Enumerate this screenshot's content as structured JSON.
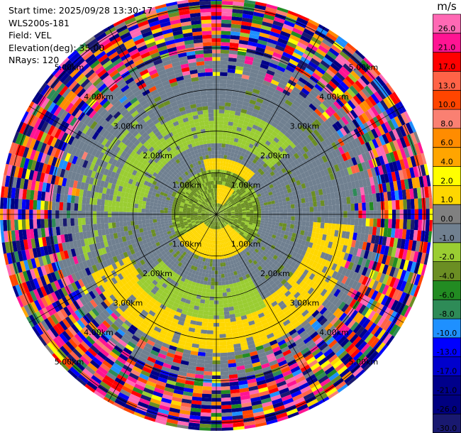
{
  "header": {
    "start_time": "Start time: 2025/09/28 13:30:17",
    "instrument": "WLS200s-181",
    "field": "Field: VEL",
    "elevation": "Elevation(deg): 35.00",
    "nrays": "NRays: 120"
  },
  "chart_data": {
    "type": "heatmap",
    "subtype": "ppi-polar",
    "field": "VEL",
    "units": "m/s",
    "n_rays": 120,
    "range_rings_km": [
      1.0,
      2.0,
      3.0,
      4.0,
      5.0
    ],
    "max_range_km": 5.2,
    "ring_labels": [
      "1.00km",
      "2.00km",
      "3.00km",
      "4.00km",
      "5.00km"
    ],
    "colorbar": {
      "title": "m/s",
      "tick_labels": [
        "26.0",
        "21.0",
        "17.0",
        "13.0",
        "10.0",
        "8.0",
        "6.0",
        "4.0",
        "2.0",
        "1.0",
        "0.0",
        "-1.0",
        "-2.0",
        "-4.0",
        "-6.0",
        "-8.0",
        "-10.0",
        "-13.0",
        "-17.0",
        "-21.0",
        "-26.0",
        "-30.0"
      ],
      "bounds": [
        -30,
        -26,
        -21,
        -17,
        -13,
        -10,
        -8,
        -6,
        -4,
        -2,
        -1,
        0,
        1,
        2,
        4,
        6,
        8,
        10,
        13,
        17,
        21,
        26,
        30
      ],
      "colors": [
        "#191970",
        "#000080",
        "#00008b",
        "#0000cd",
        "#0000ff",
        "#1e90ff",
        "#2e8b57",
        "#228b22",
        "#6b8e23",
        "#9acd32",
        "#708090",
        "#808080",
        "#ffd700",
        "#ffff00",
        "#ffa500",
        "#ff8c00",
        "#fa8072",
        "#ff4500",
        "#ff6347",
        "#ff0000",
        "#ff1493",
        "#ff69b4"
      ]
    },
    "range_bands": [
      {
        "from_km": 0.0,
        "to_km": 1.0,
        "pattern": "mostly olive/yellow-green (-2 to -4 m/s)"
      },
      {
        "from_km": 0.3,
        "to_km": 1.2,
        "pattern": "yellow core (+1 to +2 m/s) to the south and northeast"
      },
      {
        "from_km": 1.0,
        "to_km": 2.5,
        "pattern": "slate gray (-1 to 0 m/s)"
      },
      {
        "from_km": 1.5,
        "to_km": 2.5,
        "pattern": "yellow-green arc (-1 to -2 m/s) to the north and south"
      },
      {
        "from_km": 2.3,
        "to_km": 3.3,
        "pattern": "yellow arc (+1 to +2 m/s) to the south"
      },
      {
        "from_km": 2.5,
        "to_km": 3.8,
        "pattern": "gray with mixed noise"
      },
      {
        "from_km": 3.8,
        "to_km": 5.2,
        "pattern": "noise - all colors"
      }
    ]
  }
}
